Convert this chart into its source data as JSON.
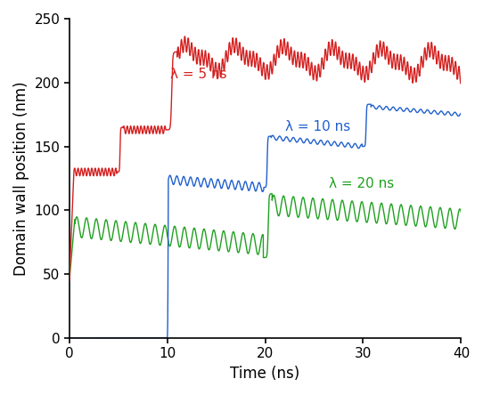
{
  "title": "",
  "xlabel": "Time (ns)",
  "ylabel": "Domain wall position (nm)",
  "xlim": [
    0,
    40
  ],
  "ylim": [
    0,
    250
  ],
  "xticks": [
    0,
    10,
    20,
    30,
    40
  ],
  "yticks": [
    0,
    50,
    100,
    150,
    200,
    250
  ],
  "lambda_5_color": "#d42020",
  "lambda_10_color": "#2060cc",
  "lambda_20_color": "#20a020",
  "lambda_5_label": "λ = 5 ns",
  "lambda_10_label": "λ = 10 ns",
  "lambda_20_label": "λ = 20 ns",
  "background_color": "#ffffff",
  "figsize": [
    5.42,
    4.44
  ],
  "dpi": 100
}
